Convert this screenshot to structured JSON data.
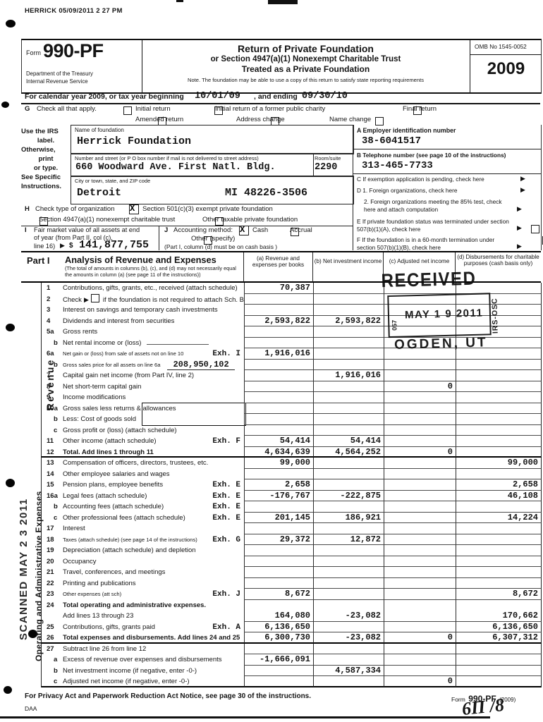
{
  "misc": {
    "x_mark": "X",
    "arrow": "▶"
  },
  "scan": {
    "print_header": "HERRICK 05/09/2011 2 27 PM",
    "handwritten": "6Π /8"
  },
  "header": {
    "form_label": "Form",
    "form_number": "990-PF",
    "dept_line1": "Department of the Treasury",
    "dept_line2": "Internal Revenue Service",
    "title_line1": "Return of Private Foundation",
    "title_line2": "or Section 4947(a)(1) Nonexempt Charitable Trust",
    "title_line3": "Treated as a Private Foundation",
    "note": "Note. The foundation may be able to use a copy of this return to satisfy state reporting requirements",
    "omb": "OMB No  1545-0052",
    "tax_year": "2009"
  },
  "calendar": {
    "prefix": "For calendar year 2009, or tax year beginning",
    "begin_date": "10/01/09",
    "middle": ", and ending",
    "end_date": "09/30/10"
  },
  "g_section": {
    "label": "G",
    "text": "Check all that apply.",
    "opt1": "Initial return",
    "opt2": "Initial return of a former public charity",
    "opt3": "Final return",
    "opt4": "Amended return",
    "opt5": "Address change",
    "opt6": "Name change"
  },
  "entity": {
    "irs_label_1": "Use the IRS",
    "irs_label_2": "label.",
    "irs_label_3": "Otherwise,",
    "irs_label_4": "print",
    "irs_label_5": "or type.",
    "irs_label_6": "See Specific",
    "irs_label_7": "Instructions.",
    "name_label": "Name of foundation",
    "name_value": "Herrick Foundation",
    "street_label": "Number and street (or P O  box number if mail is not delivered to street address)",
    "street_value": "660 Woodward Ave. First Natl. Bldg.",
    "room_label": "Room/suite",
    "room_value": "2290",
    "city_label": "City or town, state, and ZIP code",
    "city_value": "Detroit",
    "state_zip_value": "MI 48226-3506"
  },
  "right_col": {
    "a_label": "A   Employer identification number",
    "ein": "38-6041517",
    "b_label": "B   Telephone number (see page 10 of the instructions)",
    "phone": "313-465-7733",
    "c_text": "C   If exemption application is pending, check here",
    "d1_text": "D  1.  Foreign organizations, check here",
    "d2_text": "2.  Foreign organizations meeting the 85% test, check here and attach computation",
    "e_text": "E   If private foundation status was terminated under section 507(b)(1)(A), check here",
    "f_text": "F   If the foundation is in a 60-month termination under section 507(b)(1)(B), check here"
  },
  "h_section": {
    "label": "H",
    "text": "Check type of organization",
    "opt1": "Section 501(c)(3) exempt private foundation",
    "opt2": "Section 4947(a)(1) nonexempt charitable trust",
    "opt3": "Other taxable private foundation"
  },
  "i_section": {
    "label": "I",
    "line1": "Fair market value of all assets at end",
    "line2": "of year (from Part II, col  (c),",
    "line3": "line 16)",
    "dollar": "$",
    "value": "141,877,755"
  },
  "j_section": {
    "label": "J",
    "text": "Accounting method:",
    "cash": "Cash",
    "accrual": "Accrual",
    "other": "Other (specify)",
    "note": "(Part I, column (d) must be on cash basis )"
  },
  "part1": {
    "title": "Part I",
    "heading": "Analysis of Revenue and Expenses",
    "heading_note": "(The total of amounts in columns (b), (c), and (d) may not necessarily equal the amounts in column (a) (see page 11 of the instructions))",
    "col_a": "(a)  Revenue and expenses per books",
    "col_b": "(b)  Net investment income",
    "col_c": "(c)  Adjusted net income",
    "col_d": "(d)  Disbursements for charitable purposes (cash basis only)",
    "side_revenue": "Revenue",
    "side_expenses": "Operating and Administrative Expenses",
    "rows": [
      {
        "num": "1",
        "label": "Contributions, gifts, grants, etc., received (attach schedule)",
        "a": "70,387"
      },
      {
        "num": "2",
        "checkbox": true,
        "pre": "Check",
        "label": "if the foundation is not required to attach Sch. B"
      },
      {
        "num": "3",
        "label": "Interest on savings and temporary cash investments"
      },
      {
        "num": "4",
        "label": "Dividends and interest from securities",
        "a": "2,593,822",
        "b": "2,593,822"
      },
      {
        "num": "5a",
        "label": "Gross rents"
      },
      {
        "num": "b",
        "label": "Net rental income or (loss)",
        "underline": true
      },
      {
        "num": "6a",
        "label": "Net gain or (loss) from sale of assets not on line 10",
        "exh": "Exh. I",
        "a": "1,916,016"
      },
      {
        "num": "b",
        "label": "Gross sales price for all assets on line 6a",
        "inline_value": "208,950,102"
      },
      {
        "num": "7",
        "label": "Capital gain net income (from Part IV, line 2)",
        "b": "1,916,016"
      },
      {
        "num": "8",
        "label": "Net short-term capital gain",
        "c": "0"
      },
      {
        "num": "9",
        "label": "Income modifications"
      },
      {
        "num": "10a",
        "label": "Gross sales less returns & allowances"
      },
      {
        "num": "b",
        "label": "Less: Cost of goods sold"
      },
      {
        "num": "c",
        "label": "Gross profit or (loss) (attach schedule)"
      },
      {
        "num": "11",
        "label": "Other income (attach schedule)",
        "exh": "Exh. F",
        "a": "54,414",
        "b": "54,414"
      },
      {
        "num": "12",
        "label": "Total. Add lines 1 through 11",
        "a": "4,634,639",
        "b": "4,564,252",
        "c": "0"
      },
      {
        "num": "13",
        "label": "Compensation of officers, directors, trustees, etc.",
        "a": "99,000",
        "d": "99,000"
      },
      {
        "num": "14",
        "label": "Other employee salaries and wages"
      },
      {
        "num": "15",
        "label": "Pension plans, employee benefits",
        "exh": "Exh. E",
        "a": "2,658",
        "d": "2,658"
      },
      {
        "num": "16a",
        "label": "Legal fees (attach schedule)",
        "exh": "Exh. E",
        "a": "-176,767",
        "b": "-222,875",
        "d": "46,108"
      },
      {
        "num": "b",
        "label": "Accounting fees (attach schedule)",
        "exh": "Exh. E"
      },
      {
        "num": "c",
        "label": "Other professional fees (attach schedule)",
        "exh": "Exh. E",
        "a": "201,145",
        "b": "186,921",
        "d": "14,224"
      },
      {
        "num": "17",
        "label": "Interest"
      },
      {
        "num": "18",
        "label": "Taxes (attach schedule) (see page 14 of the instructions)",
        "exh": "Exh. G",
        "a": "29,372",
        "b": "12,872"
      },
      {
        "num": "19",
        "label": "Depreciation (attach schedule) and depletion"
      },
      {
        "num": "20",
        "label": "Occupancy"
      },
      {
        "num": "21",
        "label": "Travel, conferences, and meetings"
      },
      {
        "num": "22",
        "label": "Printing and publications"
      },
      {
        "num": "23",
        "label": "Other expenses (att sch)",
        "exh": "Exh. J",
        "a": "8,672",
        "d": "8,672"
      },
      {
        "num": "24",
        "label": "Total operating and administrative expenses."
      },
      {
        "num": "",
        "label": "Add lines 13 through 23",
        "a": "164,080",
        "b": "-23,082",
        "d": "170,662"
      },
      {
        "num": "25",
        "label": "Contributions, gifts, grants paid",
        "exh": "Exh. A",
        "a": "6,136,650",
        "d": "6,136,650"
      },
      {
        "num": "26",
        "label": "Total expenses and disbursements. Add lines 24 and 25",
        "a": "6,300,730",
        "b": "-23,082",
        "c": "0",
        "d": "6,307,312"
      },
      {
        "num": "27",
        "label": "Subtract line 26 from line 12"
      },
      {
        "num": "a",
        "label": "Excess of revenue over expenses and disbursements",
        "a": "-1,666,091"
      },
      {
        "num": "b",
        "label": "Net investment income (if negative, enter -0-)",
        "b": "4,587,334"
      },
      {
        "num": "c",
        "label": "Adjusted net income (if negative, enter -0-)",
        "c": "0"
      }
    ]
  },
  "stamps": {
    "received": "RECEIVED",
    "date": "MAY 1 9 2011",
    "location": "OGDEN, UT",
    "left_code": "057",
    "right_code": "IRS-OSC",
    "scanned": "SCANNED  MAY 2 3 2011"
  },
  "footer": {
    "privacy": "For Privacy Act and Paperwork Reduction Act Notice, see page 30 of the instructions.",
    "form_label": "Form",
    "form_number": "990-PF",
    "form_year": "(2009)",
    "daa": "DAA"
  }
}
